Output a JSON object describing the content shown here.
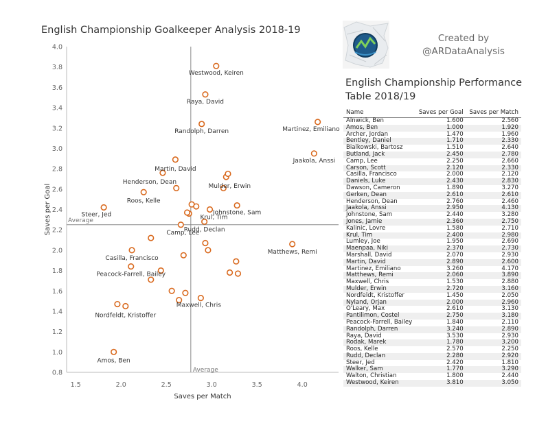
{
  "chart_data": {
    "type": "scatter",
    "title": "English Championship Goalkeeper Analysis 2018-19",
    "xlabel": "Saves per Match",
    "ylabel": "Saves per Goal",
    "xlim": [
      1.4,
      4.4
    ],
    "ylim": [
      0.8,
      4.0
    ],
    "xticks": [
      1.5,
      2.0,
      2.5,
      3.0,
      3.5,
      4.0
    ],
    "xtick_labels": [
      "1.5",
      "2.0",
      "2.5",
      "3.0",
      "3.5",
      "4.0"
    ],
    "yticks": [
      0.8,
      1.0,
      1.2,
      1.4,
      1.6,
      1.8,
      2.0,
      2.2,
      2.4,
      2.6,
      2.8,
      3.0,
      3.2,
      3.4,
      3.6,
      3.8,
      4.0
    ],
    "ytick_labels": [
      "0.8",
      "1.0",
      "1.2",
      "1.4",
      "1.6",
      "1.8",
      "2.0",
      "2.2",
      "2.4",
      "2.6",
      "2.8",
      "3.0",
      "3.2",
      "3.4",
      "3.6",
      "3.8",
      "4.0"
    ],
    "marker_color": "#d96a1f",
    "reference_lines": [
      {
        "axis": "x",
        "value": 2.77,
        "label": "Average"
      },
      {
        "axis": "y",
        "value": 2.25,
        "label": "Average"
      }
    ],
    "labeled_points": [
      "Westwood, Keiren",
      "Raya, David",
      "Randolph, Darren",
      "Martinez, Emiliano",
      "Jaakola, Anssi",
      "Martin, David",
      "Henderson, Dean",
      "Mulder, Erwin",
      "Roos, Kelle",
      "Steer, Jed",
      "Johnstone, Sam",
      "Krul, Tim",
      "Rudd, Declan",
      "Camp, Lee",
      "Matthews, Remi",
      "Casilla, Francisco",
      "Peacock-Farrell, Bailey",
      "Maxwell, Chris",
      "Nordfeldt, Kristoffer",
      "Amos, Ben"
    ],
    "points": [
      {
        "name": "Alnwick, Ben",
        "x": 2.56,
        "y": 1.6
      },
      {
        "name": "Amos, Ben",
        "x": 1.92,
        "y": 1.0
      },
      {
        "name": "Archer, Jordan",
        "x": 1.96,
        "y": 1.47
      },
      {
        "name": "Bentley, Daniel",
        "x": 2.33,
        "y": 1.71
      },
      {
        "name": "Bialkowski, Bartosz",
        "x": 2.64,
        "y": 1.51
      },
      {
        "name": "Butland, Jack",
        "x": 2.78,
        "y": 2.45
      },
      {
        "name": "Camp, Lee",
        "x": 2.66,
        "y": 2.25
      },
      {
        "name": "Carson, Scott",
        "x": 2.33,
        "y": 2.12
      },
      {
        "name": "Casilla, Francisco",
        "x": 2.12,
        "y": 2.0
      },
      {
        "name": "Daniels, Luke",
        "x": 2.83,
        "y": 2.43
      },
      {
        "name": "Dawson, Cameron",
        "x": 3.27,
        "y": 1.89
      },
      {
        "name": "Gerken, Dean",
        "x": 2.61,
        "y": 2.61
      },
      {
        "name": "Henderson, Dean",
        "x": 2.46,
        "y": 2.76
      },
      {
        "name": "Jaakola, Anssi",
        "x": 4.13,
        "y": 2.95
      },
      {
        "name": "Johnstone, Sam",
        "x": 3.28,
        "y": 2.44
      },
      {
        "name": "Jones, Jamie",
        "x": 2.75,
        "y": 2.36
      },
      {
        "name": "Kalinic, Lovre",
        "x": 2.71,
        "y": 1.58
      },
      {
        "name": "Krul, Tim",
        "x": 2.98,
        "y": 2.4
      },
      {
        "name": "Lumley, Joe",
        "x": 2.69,
        "y": 1.95
      },
      {
        "name": "Maenpaa, Niki",
        "x": 2.73,
        "y": 2.37
      },
      {
        "name": "Marshall, David",
        "x": 2.93,
        "y": 2.07
      },
      {
        "name": "Martin, David",
        "x": 2.6,
        "y": 2.89
      },
      {
        "name": "Martinez, Emiliano",
        "x": 4.17,
        "y": 3.26
      },
      {
        "name": "Matthews, Remi",
        "x": 3.89,
        "y": 2.06
      },
      {
        "name": "Maxwell, Chris",
        "x": 2.88,
        "y": 1.53
      },
      {
        "name": "Mulder, Erwin",
        "x": 3.16,
        "y": 2.72
      },
      {
        "name": "Nordfeldt, Kristoffer",
        "x": 2.05,
        "y": 1.45
      },
      {
        "name": "Nyland, Orjan",
        "x": 2.96,
        "y": 2.0
      },
      {
        "name": "O'Leary, Max",
        "x": 3.13,
        "y": 2.61
      },
      {
        "name": "Pantilimon, Costel",
        "x": 3.18,
        "y": 2.75
      },
      {
        "name": "Peacock-Farrell, Bailey",
        "x": 2.11,
        "y": 1.84
      },
      {
        "name": "Randolph, Darren",
        "x": 2.89,
        "y": 3.24
      },
      {
        "name": "Raya, David",
        "x": 2.93,
        "y": 3.53
      },
      {
        "name": "Rodak, Marek",
        "x": 3.2,
        "y": 1.78
      },
      {
        "name": "Roos, Kelle",
        "x": 2.25,
        "y": 2.57
      },
      {
        "name": "Rudd, Declan",
        "x": 2.92,
        "y": 2.28
      },
      {
        "name": "Steer, Jed",
        "x": 1.81,
        "y": 2.42
      },
      {
        "name": "Walker, Sam",
        "x": 3.29,
        "y": 1.77
      },
      {
        "name": "Walton, Christian",
        "x": 2.44,
        "y": 1.8
      },
      {
        "name": "Westwood, Keiren",
        "x": 3.05,
        "y": 3.81
      }
    ]
  },
  "credit": {
    "line1": "Created by",
    "line2": "@ARDataAnalysis"
  },
  "table": {
    "title_line1": "English Championship Performance",
    "title_line2": "Table 2018/19",
    "headers": [
      "Name",
      "Saves per Goal",
      "Saves per Match"
    ],
    "rows": [
      [
        "Alnwick, Ben",
        "1.600",
        "2.560"
      ],
      [
        "Amos, Ben",
        "1.000",
        "1.920"
      ],
      [
        "Archer, Jordan",
        "1.470",
        "1.960"
      ],
      [
        "Bentley, Daniel",
        "1.710",
        "2.330"
      ],
      [
        "Bialkowski, Bartosz",
        "1.510",
        "2.640"
      ],
      [
        "Butland, Jack",
        "2.450",
        "2.780"
      ],
      [
        "Camp, Lee",
        "2.250",
        "2.660"
      ],
      [
        "Carson, Scott",
        "2.120",
        "2.330"
      ],
      [
        "Casilla, Francisco",
        "2.000",
        "2.120"
      ],
      [
        "Daniels, Luke",
        "2.430",
        "2.830"
      ],
      [
        "Dawson, Cameron",
        "1.890",
        "3.270"
      ],
      [
        "Gerken, Dean",
        "2.610",
        "2.610"
      ],
      [
        "Henderson, Dean",
        "2.760",
        "2.460"
      ],
      [
        "Jaakola, Anssi",
        "2.950",
        "4.130"
      ],
      [
        "Johnstone, Sam",
        "2.440",
        "3.280"
      ],
      [
        "Jones, Jamie",
        "2.360",
        "2.750"
      ],
      [
        "Kalinic, Lovre",
        "1.580",
        "2.710"
      ],
      [
        "Krul, Tim",
        "2.400",
        "2.980"
      ],
      [
        "Lumley, Joe",
        "1.950",
        "2.690"
      ],
      [
        "Maenpaa, Niki",
        "2.370",
        "2.730"
      ],
      [
        "Marshall, David",
        "2.070",
        "2.930"
      ],
      [
        "Martin, David",
        "2.890",
        "2.600"
      ],
      [
        "Martinez, Emiliano",
        "3.260",
        "4.170"
      ],
      [
        "Matthews, Remi",
        "2.060",
        "3.890"
      ],
      [
        "Maxwell, Chris",
        "1.530",
        "2.880"
      ],
      [
        "Mulder, Erwin",
        "2.720",
        "3.160"
      ],
      [
        "Nordfeldt, Kristoffer",
        "1.450",
        "2.050"
      ],
      [
        "Nyland, Orjan",
        "2.000",
        "2.960"
      ],
      [
        "O'Leary, Max",
        "2.610",
        "3.130"
      ],
      [
        "Pantilimon, Costel",
        "2.750",
        "3.180"
      ],
      [
        "Peacock-Farrell, Bailey",
        "1.840",
        "2.110"
      ],
      [
        "Randolph, Darren",
        "3.240",
        "2.890"
      ],
      [
        "Raya, David",
        "3.530",
        "2.930"
      ],
      [
        "Rodak, Marek",
        "1.780",
        "3.200"
      ],
      [
        "Roos, Kelle",
        "2.570",
        "2.250"
      ],
      [
        "Rudd, Declan",
        "2.280",
        "2.920"
      ],
      [
        "Steer, Jed",
        "2.420",
        "1.810"
      ],
      [
        "Walker, Sam",
        "1.770",
        "3.290"
      ],
      [
        "Walton, Christian",
        "1.800",
        "2.440"
      ],
      [
        "Westwood, Keiren",
        "3.810",
        "3.050"
      ]
    ]
  }
}
